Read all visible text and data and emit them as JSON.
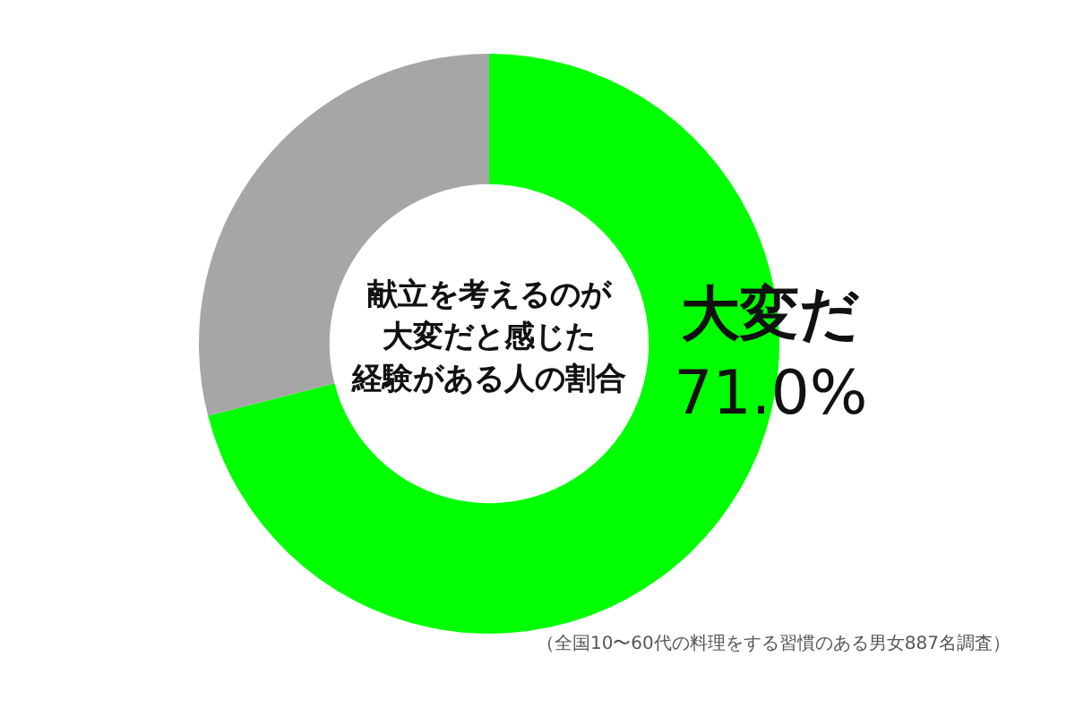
{
  "chart_data": {
    "type": "donut",
    "title": "献立を考えるのが大変だと感じた経験がある人の割合",
    "categories": [
      "大変だ",
      null
    ],
    "values": [
      71.0,
      29.0
    ],
    "colors": [
      "#00ff00",
      "#a6a6a6"
    ],
    "value_labels": [
      "71.0%",
      null
    ],
    "legend": false,
    "annotations": [
      "（全国10〜60代の料理をする習慣のある男女887名調査）"
    ]
  }
}
